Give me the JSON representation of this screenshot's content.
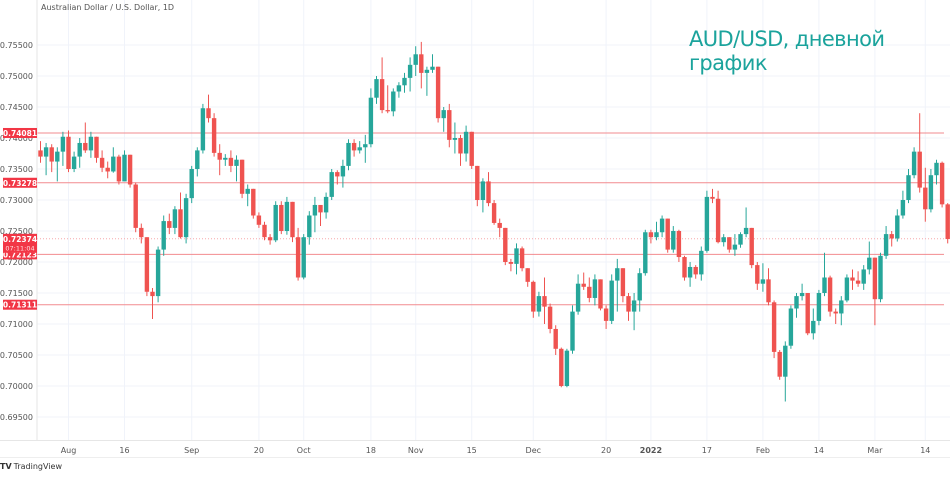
{
  "header": {
    "symbol_title": "Australian Dollar / U.S. Dollar, 1D",
    "overlay_title": "AUD/USD, дневной график"
  },
  "footer": {
    "logo_mark": "TV",
    "logo_text": "TradingView"
  },
  "colors": {
    "up": "#26a69a",
    "down": "#ef5350",
    "level_line": "#f28b8f",
    "label_bg": "#f23645",
    "grid": "#f0f3fa",
    "axis_text": "#555555",
    "title_accent": "#1ba39c"
  },
  "chart_data": {
    "type": "candlestick",
    "title": "AUD/USD, дневной график",
    "subtitle": "Australian Dollar / U.S. Dollar, 1D",
    "xlabel": "",
    "ylabel": "",
    "ylim": [
      0.6925,
      0.7575
    ],
    "y_ticks": [
      "0.75500",
      "0.75000",
      "0.74500",
      "0.74000",
      "0.73500",
      "0.73000",
      "0.72500",
      "0.72000",
      "0.71500",
      "0.71000",
      "0.70500",
      "0.70000",
      "0.69500"
    ],
    "x_ticks": [
      {
        "label": "Aug",
        "index": 5
      },
      {
        "label": "16",
        "index": 15
      },
      {
        "label": "Sep",
        "index": 27
      },
      {
        "label": "20",
        "index": 39
      },
      {
        "label": "Oct",
        "index": 47
      },
      {
        "label": "18",
        "index": 59
      },
      {
        "label": "Nov",
        "index": 67
      },
      {
        "label": "15",
        "index": 77
      },
      {
        "label": "Dec",
        "index": 88
      },
      {
        "label": "20",
        "index": 101
      },
      {
        "label": "2022",
        "index": 109
      },
      {
        "label": "17",
        "index": 119
      },
      {
        "label": "Feb",
        "index": 129
      },
      {
        "label": "14",
        "index": 139
      },
      {
        "label": "Mar",
        "index": 149
      },
      {
        "label": "14",
        "index": 158
      }
    ],
    "grid": true,
    "legend_position": "none",
    "horizontal_levels": [
      {
        "label": "0.74081",
        "value": 0.74081
      },
      {
        "label": "0.73278",
        "value": 0.73278
      },
      {
        "label": "0.72123",
        "value": 0.72123
      },
      {
        "label": "0.71311",
        "value": 0.71311
      }
    ],
    "last_price": {
      "value": 0.72374,
      "label": "0.72374",
      "countdown": "07:11:04"
    },
    "ohlc": [
      [
        0.738,
        0.7395,
        0.736,
        0.737
      ],
      [
        0.737,
        0.7392,
        0.734,
        0.7385
      ],
      [
        0.7385,
        0.739,
        0.7345,
        0.7362
      ],
      [
        0.7362,
        0.7385,
        0.733,
        0.7378
      ],
      [
        0.7378,
        0.741,
        0.7355,
        0.7402
      ],
      [
        0.7402,
        0.7412,
        0.7345,
        0.735
      ],
      [
        0.735,
        0.7378,
        0.7345,
        0.737
      ],
      [
        0.737,
        0.74,
        0.7352,
        0.7392
      ],
      [
        0.7392,
        0.7425,
        0.7376,
        0.738
      ],
      [
        0.738,
        0.741,
        0.7368,
        0.7402
      ],
      [
        0.7402,
        0.7402,
        0.736,
        0.7368
      ],
      [
        0.7368,
        0.738,
        0.7345,
        0.7352
      ],
      [
        0.7352,
        0.7362,
        0.7335,
        0.7346
      ],
      [
        0.7346,
        0.7385,
        0.7344,
        0.737
      ],
      [
        0.737,
        0.7373,
        0.7325,
        0.733
      ],
      [
        0.733,
        0.738,
        0.734,
        0.7373
      ],
      [
        0.7373,
        0.7373,
        0.732,
        0.7325
      ],
      [
        0.7325,
        0.7328,
        0.7248,
        0.7255
      ],
      [
        0.7255,
        0.7262,
        0.723,
        0.724
      ],
      [
        0.724,
        0.724,
        0.7145,
        0.7152
      ],
      [
        0.7152,
        0.7158,
        0.7108,
        0.7145
      ],
      [
        0.7145,
        0.7225,
        0.7135,
        0.722
      ],
      [
        0.722,
        0.7275,
        0.721,
        0.7266
      ],
      [
        0.7266,
        0.7278,
        0.7245,
        0.7255
      ],
      [
        0.7255,
        0.729,
        0.7245,
        0.7285
      ],
      [
        0.7285,
        0.7312,
        0.7238,
        0.724
      ],
      [
        0.724,
        0.731,
        0.723,
        0.7303
      ],
      [
        0.7303,
        0.7355,
        0.7295,
        0.735
      ],
      [
        0.735,
        0.7385,
        0.7338,
        0.738
      ],
      [
        0.738,
        0.7455,
        0.7375,
        0.7448
      ],
      [
        0.7448,
        0.747,
        0.7425,
        0.7432
      ],
      [
        0.7432,
        0.744,
        0.737,
        0.7376
      ],
      [
        0.7376,
        0.739,
        0.734,
        0.7365
      ],
      [
        0.7365,
        0.7374,
        0.7355,
        0.7368
      ],
      [
        0.7368,
        0.738,
        0.7345,
        0.7355
      ],
      [
        0.7355,
        0.7372,
        0.733,
        0.7365
      ],
      [
        0.7365,
        0.7365,
        0.7303,
        0.731
      ],
      [
        0.731,
        0.7325,
        0.729,
        0.7318
      ],
      [
        0.7318,
        0.7318,
        0.727,
        0.7275
      ],
      [
        0.7275,
        0.728,
        0.7255,
        0.726
      ],
      [
        0.726,
        0.7265,
        0.7235,
        0.724
      ],
      [
        0.724,
        0.7245,
        0.7228,
        0.7235
      ],
      [
        0.7235,
        0.7298,
        0.7232,
        0.7292
      ],
      [
        0.7292,
        0.7298,
        0.7245,
        0.725
      ],
      [
        0.725,
        0.7305,
        0.7244,
        0.7297
      ],
      [
        0.7297,
        0.7297,
        0.7232,
        0.724
      ],
      [
        0.724,
        0.7255,
        0.717,
        0.7175
      ],
      [
        0.7175,
        0.7245,
        0.7172,
        0.724
      ],
      [
        0.724,
        0.7282,
        0.7228,
        0.7275
      ],
      [
        0.7275,
        0.7305,
        0.7248,
        0.7292
      ],
      [
        0.7292,
        0.7292,
        0.7258,
        0.728
      ],
      [
        0.728,
        0.7312,
        0.727,
        0.7305
      ],
      [
        0.7305,
        0.735,
        0.73,
        0.7345
      ],
      [
        0.7345,
        0.7348,
        0.7325,
        0.7338
      ],
      [
        0.7338,
        0.7365,
        0.732,
        0.7355
      ],
      [
        0.7355,
        0.7398,
        0.7348,
        0.7392
      ],
      [
        0.7392,
        0.7398,
        0.737,
        0.738
      ],
      [
        0.738,
        0.7395,
        0.7375,
        0.7385
      ],
      [
        0.7385,
        0.7405,
        0.736,
        0.739
      ],
      [
        0.739,
        0.748,
        0.7385,
        0.7465
      ],
      [
        0.7465,
        0.75,
        0.7455,
        0.7495
      ],
      [
        0.7495,
        0.753,
        0.744,
        0.7445
      ],
      [
        0.7445,
        0.7485,
        0.744,
        0.7443
      ],
      [
        0.7443,
        0.748,
        0.7435,
        0.7475
      ],
      [
        0.7475,
        0.749,
        0.7465,
        0.7485
      ],
      [
        0.7485,
        0.7505,
        0.7473,
        0.7497
      ],
      [
        0.7497,
        0.753,
        0.7475,
        0.7518
      ],
      [
        0.7518,
        0.7548,
        0.75,
        0.7535
      ],
      [
        0.7535,
        0.7555,
        0.748,
        0.7505
      ],
      [
        0.7505,
        0.7515,
        0.7468,
        0.751
      ],
      [
        0.751,
        0.7535,
        0.7505,
        0.7515
      ],
      [
        0.7515,
        0.7515,
        0.7425,
        0.7432
      ],
      [
        0.7432,
        0.745,
        0.741,
        0.7445
      ],
      [
        0.7445,
        0.7455,
        0.7385,
        0.7397
      ],
      [
        0.7397,
        0.7425,
        0.7375,
        0.74
      ],
      [
        0.74,
        0.7405,
        0.7355,
        0.7375
      ],
      [
        0.7375,
        0.742,
        0.7362,
        0.741
      ],
      [
        0.741,
        0.741,
        0.735,
        0.7355
      ],
      [
        0.7355,
        0.7355,
        0.729,
        0.73
      ],
      [
        0.73,
        0.7335,
        0.728,
        0.733
      ],
      [
        0.733,
        0.7345,
        0.729,
        0.7295
      ],
      [
        0.7295,
        0.73,
        0.726,
        0.7263
      ],
      [
        0.7263,
        0.727,
        0.724,
        0.7255
      ],
      [
        0.7255,
        0.7255,
        0.7195,
        0.72
      ],
      [
        0.72,
        0.7205,
        0.7185,
        0.7197
      ],
      [
        0.7197,
        0.723,
        0.718,
        0.7222
      ],
      [
        0.7222,
        0.7225,
        0.7185,
        0.719
      ],
      [
        0.719,
        0.719,
        0.716,
        0.7168
      ],
      [
        0.7168,
        0.717,
        0.711,
        0.712
      ],
      [
        0.712,
        0.7152,
        0.7112,
        0.7145
      ],
      [
        0.7145,
        0.7175,
        0.71,
        0.7128
      ],
      [
        0.7128,
        0.7133,
        0.7085,
        0.7092
      ],
      [
        0.7092,
        0.7098,
        0.705,
        0.706
      ],
      [
        0.706,
        0.7062,
        0.6998,
        0.7
      ],
      [
        0.7,
        0.706,
        0.6998,
        0.7057
      ],
      [
        0.7057,
        0.713,
        0.7052,
        0.712
      ],
      [
        0.712,
        0.718,
        0.7115,
        0.7165
      ],
      [
        0.7165,
        0.7183,
        0.7155,
        0.716
      ],
      [
        0.716,
        0.7175,
        0.7135,
        0.7142
      ],
      [
        0.7142,
        0.718,
        0.713,
        0.7172
      ],
      [
        0.7172,
        0.7172,
        0.7122,
        0.7125
      ],
      [
        0.7125,
        0.713,
        0.7092,
        0.7105
      ],
      [
        0.7105,
        0.718,
        0.71,
        0.717
      ],
      [
        0.717,
        0.7205,
        0.712,
        0.719
      ],
      [
        0.719,
        0.719,
        0.7135,
        0.7145
      ],
      [
        0.7145,
        0.715,
        0.7105,
        0.712
      ],
      [
        0.712,
        0.715,
        0.709,
        0.7138
      ],
      [
        0.7138,
        0.719,
        0.712,
        0.7182
      ],
      [
        0.7182,
        0.7252,
        0.7178,
        0.7248
      ],
      [
        0.7248,
        0.7252,
        0.723,
        0.724
      ],
      [
        0.724,
        0.7265,
        0.7235,
        0.7248
      ],
      [
        0.7248,
        0.7275,
        0.724,
        0.727
      ],
      [
        0.727,
        0.727,
        0.7215,
        0.722
      ],
      [
        0.722,
        0.7258,
        0.7215,
        0.725
      ],
      [
        0.725,
        0.7252,
        0.72,
        0.7208
      ],
      [
        0.7208,
        0.721,
        0.717,
        0.7175
      ],
      [
        0.7175,
        0.72,
        0.716,
        0.7192
      ],
      [
        0.7192,
        0.7195,
        0.7173,
        0.718
      ],
      [
        0.718,
        0.7225,
        0.717,
        0.7218
      ],
      [
        0.7218,
        0.7315,
        0.7215,
        0.7305
      ],
      [
        0.7305,
        0.7318,
        0.7295,
        0.7302
      ],
      [
        0.7302,
        0.7315,
        0.723,
        0.7232
      ],
      [
        0.7232,
        0.7245,
        0.7225,
        0.724
      ],
      [
        0.724,
        0.724,
        0.7215,
        0.722
      ],
      [
        0.722,
        0.7245,
        0.721,
        0.7228
      ],
      [
        0.7228,
        0.7248,
        0.7223,
        0.7245
      ],
      [
        0.7245,
        0.7288,
        0.724,
        0.7255
      ],
      [
        0.7255,
        0.7255,
        0.719,
        0.7195
      ],
      [
        0.7195,
        0.72,
        0.7155,
        0.7165
      ],
      [
        0.7165,
        0.7198,
        0.7152,
        0.7172
      ],
      [
        0.7172,
        0.719,
        0.713,
        0.7135
      ],
      [
        0.7135,
        0.7138,
        0.7045,
        0.7055
      ],
      [
        0.7055,
        0.7058,
        0.701,
        0.7015
      ],
      [
        0.7015,
        0.7072,
        0.6975,
        0.7065
      ],
      [
        0.7065,
        0.713,
        0.706,
        0.7125
      ],
      [
        0.7125,
        0.715,
        0.711,
        0.7145
      ],
      [
        0.7145,
        0.7165,
        0.7138,
        0.715
      ],
      [
        0.715,
        0.715,
        0.7082,
        0.7085
      ],
      [
        0.7085,
        0.7125,
        0.7075,
        0.7105
      ],
      [
        0.7105,
        0.7155,
        0.7098,
        0.715
      ],
      [
        0.715,
        0.7215,
        0.7145,
        0.7175
      ],
      [
        0.7175,
        0.7178,
        0.7112,
        0.712
      ],
      [
        0.712,
        0.7125,
        0.71,
        0.7117
      ],
      [
        0.7117,
        0.7145,
        0.7098,
        0.7138
      ],
      [
        0.7138,
        0.718,
        0.7135,
        0.7175
      ],
      [
        0.7175,
        0.7188,
        0.7155,
        0.717
      ],
      [
        0.717,
        0.7185,
        0.716,
        0.7165
      ],
      [
        0.7165,
        0.7195,
        0.7155,
        0.7188
      ],
      [
        0.7188,
        0.7233,
        0.718,
        0.7207
      ],
      [
        0.7207,
        0.7207,
        0.7098,
        0.714
      ],
      [
        0.714,
        0.7215,
        0.7135,
        0.721
      ],
      [
        0.721,
        0.7258,
        0.7205,
        0.7245
      ],
      [
        0.7245,
        0.725,
        0.7225,
        0.7238
      ],
      [
        0.7238,
        0.7285,
        0.7233,
        0.7275
      ],
      [
        0.7275,
        0.7315,
        0.727,
        0.73
      ],
      [
        0.73,
        0.735,
        0.7295,
        0.734
      ],
      [
        0.734,
        0.7385,
        0.7335,
        0.7378
      ],
      [
        0.7378,
        0.744,
        0.7312,
        0.732
      ],
      [
        0.732,
        0.7352,
        0.7265,
        0.7285
      ],
      [
        0.7285,
        0.735,
        0.728,
        0.734
      ],
      [
        0.734,
        0.7365,
        0.7325,
        0.736
      ],
      [
        0.736,
        0.7362,
        0.7288,
        0.7293
      ],
      [
        0.7293,
        0.7295,
        0.723,
        0.7237
      ]
    ]
  }
}
